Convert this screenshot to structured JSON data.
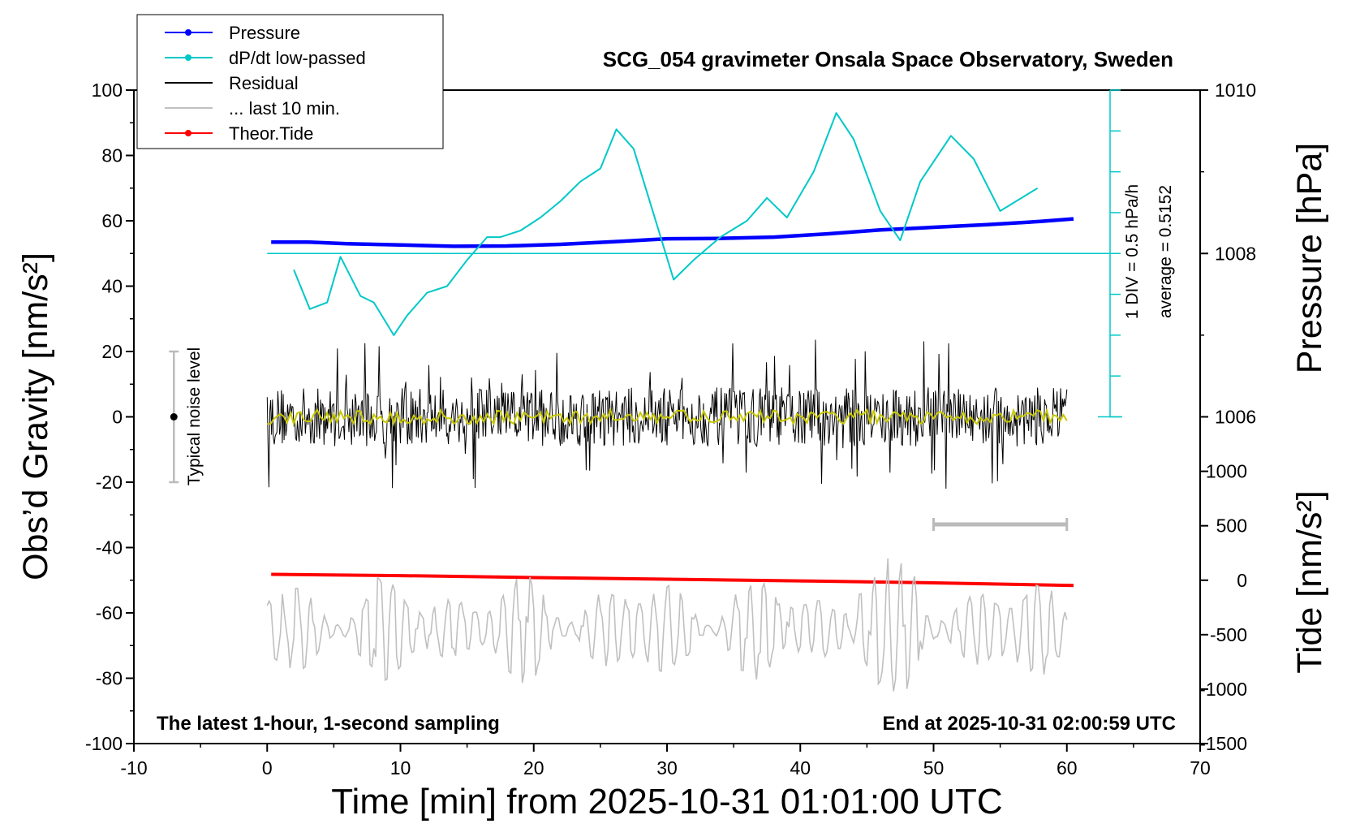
{
  "chart_data": {
    "type": "line",
    "title": "SCG_054 gravimeter Onsala Space Observatory, Sweden",
    "xlabel": "Time [min] from 2025-10-31 01:01:00 UTC",
    "ylabel_left": "Obs’d Gravity [nm/s²]",
    "ylabel_right_top": "Pressure [hPa]",
    "ylabel_right_bottom": "Tide [nm/s²]",
    "xlim": [
      -10,
      70
    ],
    "ylim": [
      -100,
      100
    ],
    "x_ticks": [
      "-10",
      "0",
      "10",
      "20",
      "30",
      "40",
      "50",
      "60",
      "70"
    ],
    "x_tick_values": [
      -10,
      0,
      10,
      20,
      30,
      40,
      50,
      60,
      70
    ],
    "y_ticks": [
      "-100",
      "-80",
      "-60",
      "-40",
      "-20",
      "0",
      "20",
      "40",
      "60",
      "80",
      "100"
    ],
    "y_tick_values": [
      -100,
      -80,
      -60,
      -40,
      -20,
      0,
      20,
      40,
      60,
      80,
      100
    ],
    "pressure_axis": {
      "ticks": [
        "1006",
        "1008",
        "1010"
      ],
      "tick_values": [
        1006,
        1008,
        1010
      ],
      "gravity_at_1008": 50,
      "gravity_per_hpa": 25
    },
    "tide_axis": {
      "ticks": [
        "-1500",
        "-1000",
        "-500",
        "0",
        "500",
        "1000"
      ],
      "tick_values": [
        -1500,
        -1000,
        -500,
        0,
        500,
        1000
      ],
      "gravity_at_zero": -50,
      "gravity_per_unit": 0.03333
    },
    "legend": [
      {
        "label": "Pressure",
        "color": "#0000ff",
        "marker": true
      },
      {
        "label": "dP/dt low-passed",
        "color": "#00c8c8",
        "marker": true
      },
      {
        "label": "Residual",
        "color": "#000000",
        "marker": false
      },
      {
        "label": "... last 10 min.",
        "color": "#c0c0c0",
        "marker": false
      },
      {
        "label": "Theor.Tide",
        "color": "#ff0000",
        "marker": true
      }
    ],
    "annotations": {
      "noise_label": "Typical noise level",
      "noise_range": [
        -20,
        20
      ],
      "noise_x": -7,
      "dpdt_scale": "1 DIV = 0.5 hPa/h",
      "dpdt_average": "average = 0.5152",
      "bottom_left": "The latest 1-hour, 1-second sampling",
      "bottom_right": "End at 2025-10-31 02:00:59 UTC"
    },
    "series": [
      {
        "name": "Pressure",
        "color": "#0000ff",
        "x": [
          0.3,
          3,
          6,
          10,
          14,
          18,
          22,
          26,
          30,
          34,
          38,
          42,
          46,
          50,
          54,
          58,
          60.5
        ],
        "values": [
          53.5,
          53.5,
          53,
          52.6,
          52.2,
          52.3,
          52.8,
          53.6,
          54.5,
          54.6,
          55,
          56,
          57.2,
          58,
          58.8,
          59.8,
          60.6
        ]
      },
      {
        "name": "dP/dt low-passed",
        "color": "#00c8c8",
        "x": [
          2,
          3.2,
          4.5,
          5.5,
          7,
          8,
          9.5,
          10.5,
          12,
          13.5,
          15,
          16.5,
          17.5,
          19,
          20.5,
          22,
          23.5,
          25,
          26.2,
          27.5,
          29,
          30.5,
          32,
          34,
          36,
          37.5,
          39,
          41,
          42.7,
          44,
          46,
          47.5,
          49,
          51.3,
          53,
          55,
          57.8
        ],
        "values": [
          45,
          33,
          35,
          49,
          37,
          35,
          25,
          31,
          38,
          40,
          48,
          55,
          55,
          57,
          61,
          66,
          72,
          76,
          88,
          82,
          62,
          42,
          48,
          55,
          60,
          67,
          61,
          75,
          93,
          85,
          63,
          54,
          72,
          86,
          79,
          63,
          70
        ]
      },
      {
        "name": "Theor.Tide",
        "color": "#ff0000",
        "x": [
          0.3,
          10,
          20,
          30,
          40,
          50,
          60.5
        ],
        "values": [
          -48.2,
          -48.6,
          -49.2,
          -49.7,
          -50.2,
          -50.8,
          -51.6
        ]
      },
      {
        "name": "Residual",
        "color": "#000000",
        "x_range": [
          0,
          60
        ],
        "values": [
          0
        ],
        "envelope": [
          -22,
          24
        ]
      },
      {
        "name": "... last 10 min.",
        "color": "#c0c0c0",
        "x_range": [
          0,
          60
        ],
        "values": [
          -63
        ],
        "envelope": [
          -84,
          -38
        ]
      }
    ]
  }
}
